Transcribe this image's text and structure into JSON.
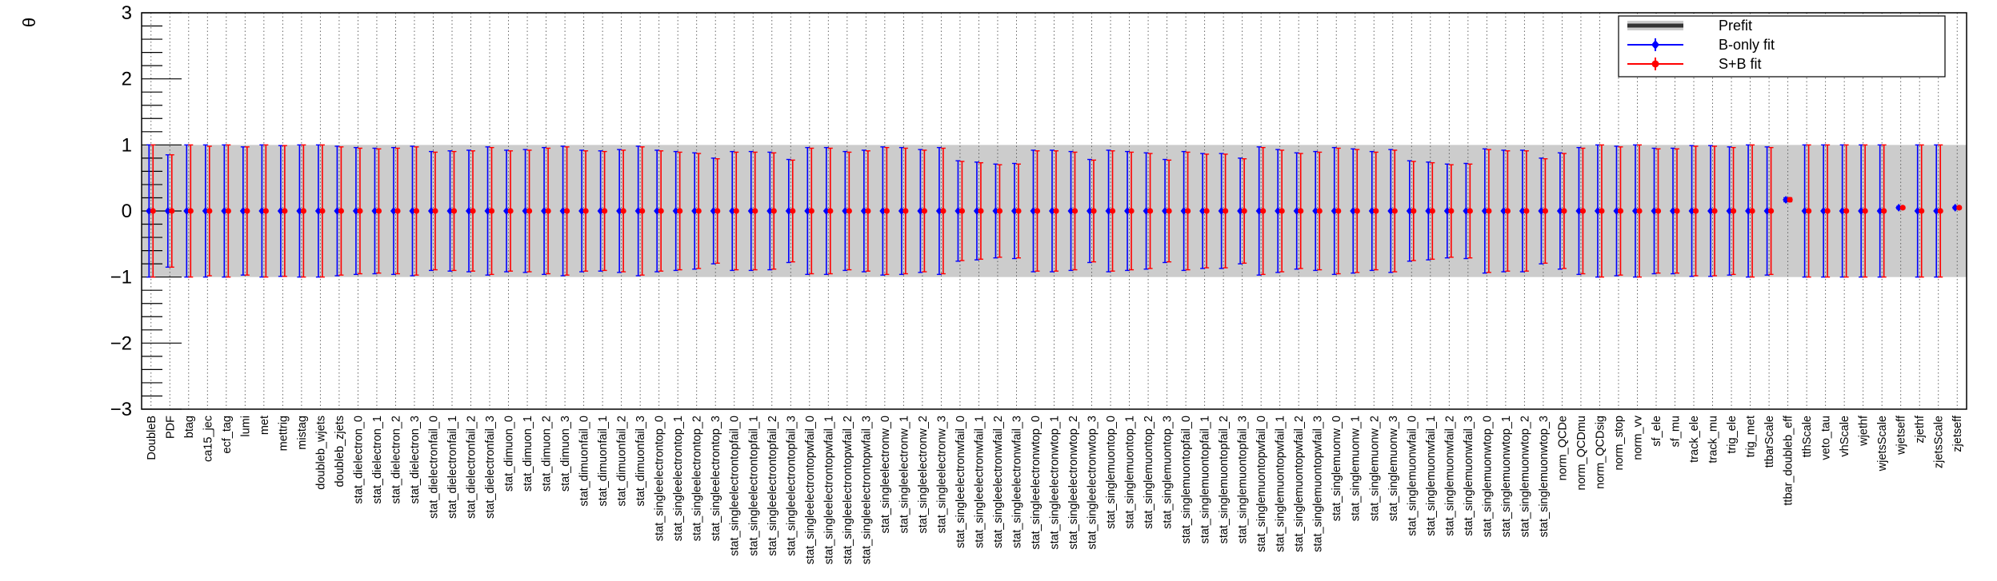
{
  "chart_data": {
    "type": "scatter",
    "title": "",
    "ylabel": "θ",
    "xlabel": "",
    "ylim": [
      -3,
      3
    ],
    "y_ticks": [
      "3",
      "2",
      "1",
      "0",
      "−1",
      "−2",
      "−3"
    ],
    "y_tick_values": [
      3,
      2,
      1,
      0,
      -1,
      -2,
      -3
    ],
    "prefit_band": [
      -1,
      1
    ],
    "grid": "x-dotted",
    "legend_position": "top-right",
    "legend": [
      {
        "label": "Prefit",
        "color": "#333333",
        "style": "band"
      },
      {
        "label": "B-only fit",
        "color": "#0000ff",
        "style": "marker-diamond"
      },
      {
        "label": "S+B fit",
        "color": "#ff0000",
        "style": "marker-circle"
      }
    ],
    "categories": [
      "DoubleB",
      "PDF",
      "btag",
      "ca15_jec",
      "ecf_tag",
      "lumi",
      "met",
      "mettrig",
      "mistag",
      "doubleb_wjets",
      "doubleb_zjets",
      "stat_dielectron_0",
      "stat_dielectron_1",
      "stat_dielectron_2",
      "stat_dielectron_3",
      "stat_dielectronfail_0",
      "stat_dielectronfail_1",
      "stat_dielectronfail_2",
      "stat_dielectronfail_3",
      "stat_dimuon_0",
      "stat_dimuon_1",
      "stat_dimuon_2",
      "stat_dimuon_3",
      "stat_dimuonfail_0",
      "stat_dimuonfail_1",
      "stat_dimuonfail_2",
      "stat_dimuonfail_3",
      "stat_singleelectrontop_0",
      "stat_singleelectrontop_1",
      "stat_singleelectrontop_2",
      "stat_singleelectrontop_3",
      "stat_singleelectrontopfail_0",
      "stat_singleelectrontopfail_1",
      "stat_singleelectrontopfail_2",
      "stat_singleelectrontopfail_3",
      "stat_singleelectrontopwfail_0",
      "stat_singleelectrontopwfail_1",
      "stat_singleelectrontopwfail_2",
      "stat_singleelectrontopwfail_3",
      "stat_singleelectronw_0",
      "stat_singleelectronw_1",
      "stat_singleelectronw_2",
      "stat_singleelectronw_3",
      "stat_singleelectronwfail_0",
      "stat_singleelectronwfail_1",
      "stat_singleelectronwfail_2",
      "stat_singleelectronwfail_3",
      "stat_singleelectronwtop_0",
      "stat_singleelectronwtop_1",
      "stat_singleelectronwtop_2",
      "stat_singleelectronwtop_3",
      "stat_singlemuontop_0",
      "stat_singlemuontop_1",
      "stat_singlemuontop_2",
      "stat_singlemuontop_3",
      "stat_singlemuontopfail_0",
      "stat_singlemuontopfail_1",
      "stat_singlemuontopfail_2",
      "stat_singlemuontopfail_3",
      "stat_singlemuontopwfail_0",
      "stat_singlemuontopwfail_1",
      "stat_singlemuontopwfail_2",
      "stat_singlemuontopwfail_3",
      "stat_singlemuonw_0",
      "stat_singlemuonw_1",
      "stat_singlemuonw_2",
      "stat_singlemuonw_3",
      "stat_singlemuonwfail_0",
      "stat_singlemuonwfail_1",
      "stat_singlemuonwfail_2",
      "stat_singlemuonwfail_3",
      "stat_singlemuonwtop_0",
      "stat_singlemuonwtop_1",
      "stat_singlemuonwtop_2",
      "stat_singlemuonwtop_3",
      "norm_QCDe",
      "norm_QCDmu",
      "norm_QCDsig",
      "norm_stop",
      "norm_vv",
      "sf_ele",
      "sf_mu",
      "track_ele",
      "track_mu",
      "trig_ele",
      "trig_met",
      "ttbarScale",
      "ttbar_doubleb_eff",
      "tthScale",
      "veto_tau",
      "vhScale",
      "wjethf",
      "wjetsScale",
      "wjetseff",
      "zjethf",
      "zjetsScale",
      "zjetseff"
    ],
    "series": [
      {
        "name": "B-only fit",
        "color": "#0000ff",
        "values": [
          0,
          0,
          0,
          0,
          0,
          0,
          0,
          0,
          0,
          0,
          0,
          0,
          0,
          0,
          0,
          0,
          0,
          0,
          0,
          0,
          0,
          0,
          0,
          0,
          0,
          0,
          0,
          0,
          0,
          0,
          0,
          0,
          0,
          0,
          0,
          0,
          0,
          0,
          0,
          0,
          0,
          0,
          0,
          0,
          0,
          0,
          0,
          0,
          0,
          0,
          0,
          0,
          0,
          0,
          0,
          0,
          0,
          0,
          0,
          0,
          0,
          0,
          0,
          0,
          0,
          0,
          0,
          0,
          0,
          0,
          0,
          0,
          0,
          0,
          0,
          0,
          0,
          0,
          0,
          0,
          0,
          0,
          0,
          0,
          0,
          0,
          0,
          0.17,
          0,
          0,
          0,
          0,
          0,
          0.05,
          0,
          0,
          0.05
        ],
        "errors": [
          1.0,
          0.85,
          1.0,
          1.0,
          1.0,
          0.97,
          1.0,
          0.99,
          1.0,
          1.0,
          0.98,
          0.96,
          0.95,
          0.96,
          0.98,
          0.9,
          0.91,
          0.92,
          0.97,
          0.92,
          0.93,
          0.96,
          0.98,
          0.92,
          0.91,
          0.93,
          0.98,
          0.92,
          0.9,
          0.88,
          0.8,
          0.9,
          0.9,
          0.89,
          0.78,
          0.96,
          0.96,
          0.9,
          0.92,
          0.97,
          0.96,
          0.93,
          0.96,
          0.76,
          0.74,
          0.71,
          0.72,
          0.92,
          0.92,
          0.9,
          0.78,
          0.92,
          0.9,
          0.88,
          0.78,
          0.9,
          0.87,
          0.87,
          0.8,
          0.97,
          0.93,
          0.88,
          0.9,
          0.96,
          0.94,
          0.9,
          0.93,
          0.76,
          0.74,
          0.71,
          0.72,
          0.94,
          0.92,
          0.92,
          0.8,
          0.88,
          0.96,
          1.0,
          0.98,
          1.0,
          0.95,
          0.95,
          0.99,
          0.99,
          0.97,
          1.0,
          0.97,
          0.03,
          1.0,
          1.0,
          1.0,
          1.0,
          1.0,
          0.02,
          1.0,
          1.0,
          0.02
        ]
      },
      {
        "name": "S+B fit",
        "color": "#ff0000",
        "values": [
          0,
          0,
          0,
          0,
          0,
          0,
          0,
          0,
          0,
          0,
          0,
          0,
          0,
          0,
          0,
          0,
          0,
          0,
          0,
          0,
          0,
          0,
          0,
          0,
          0,
          0,
          0,
          0,
          0,
          0,
          0,
          0,
          0,
          0,
          0,
          0,
          0,
          0,
          0,
          0,
          0,
          0,
          0,
          0,
          0,
          0,
          0,
          0,
          0,
          0,
          0,
          0,
          0,
          0,
          0,
          0,
          0,
          0,
          0,
          0,
          0,
          0,
          0,
          0,
          0,
          0,
          0,
          0,
          0,
          0,
          0,
          0,
          0,
          0,
          0,
          0,
          0,
          0,
          0,
          0,
          0,
          0,
          0,
          0,
          0,
          0,
          0,
          0.17,
          0,
          0,
          0,
          0,
          0,
          0.05,
          0,
          0,
          0.05
        ],
        "errors": [
          1.0,
          0.85,
          1.0,
          0.98,
          1.0,
          0.97,
          1.0,
          0.99,
          1.0,
          1.0,
          0.97,
          0.95,
          0.94,
          0.95,
          0.97,
          0.89,
          0.9,
          0.91,
          0.96,
          0.91,
          0.92,
          0.95,
          0.97,
          0.91,
          0.9,
          0.92,
          0.97,
          0.91,
          0.89,
          0.87,
          0.79,
          0.89,
          0.89,
          0.88,
          0.77,
          0.95,
          0.95,
          0.89,
          0.91,
          0.96,
          0.95,
          0.92,
          0.95,
          0.75,
          0.73,
          0.7,
          0.71,
          0.91,
          0.91,
          0.89,
          0.77,
          0.91,
          0.89,
          0.87,
          0.77,
          0.89,
          0.86,
          0.86,
          0.79,
          0.96,
          0.92,
          0.87,
          0.89,
          0.95,
          0.93,
          0.89,
          0.92,
          0.75,
          0.73,
          0.7,
          0.71,
          0.93,
          0.91,
          0.91,
          0.79,
          0.87,
          0.95,
          1.0,
          0.97,
          1.0,
          0.94,
          0.94,
          0.98,
          0.98,
          0.96,
          1.0,
          0.96,
          0.03,
          1.0,
          1.0,
          1.0,
          1.0,
          1.0,
          0.02,
          1.0,
          1.0,
          0.02
        ]
      }
    ]
  }
}
